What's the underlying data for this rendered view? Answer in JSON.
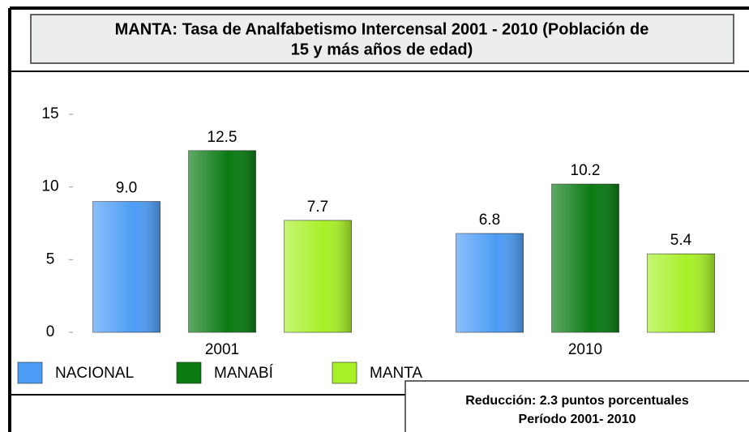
{
  "chart_data": {
    "type": "bar",
    "title": [
      "MANTA: Tasa de Analfabetismo Intercensal 2001 - 2010 (Población de",
      "15 y más años de edad)"
    ],
    "categories": [
      "2001",
      "2010"
    ],
    "series": [
      {
        "name": "NACIONAL",
        "color": "#4d9cf5",
        "values": [
          9.0,
          6.8
        ],
        "value_labels": [
          "9.0",
          "6.8"
        ]
      },
      {
        "name": "MANABÍ",
        "color": "#0a7a12",
        "values": [
          12.5,
          10.2
        ],
        "value_labels": [
          "12.5",
          "10.2"
        ]
      },
      {
        "name": "MANTA",
        "color": "#a8f028",
        "values": [
          7.7,
          5.4
        ],
        "value_labels": [
          "7.7",
          "5.4"
        ]
      }
    ],
    "ylim": [
      0,
      15
    ],
    "yticks": [
      0,
      5,
      10,
      15
    ],
    "annotation": [
      "Reducción: 2.3 puntos porcentuales",
      "Período 2001- 2010"
    ]
  }
}
